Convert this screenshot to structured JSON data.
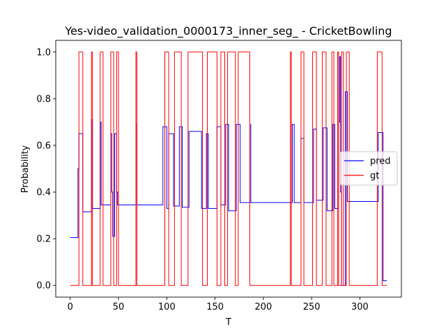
{
  "chart_data": {
    "type": "line",
    "title": "Yes-video_validation_0000173_inner_seg_ - CricketBowling",
    "xlabel": "T",
    "ylabel": "Probability",
    "xlim": [
      -15,
      343
    ],
    "ylim": [
      -0.05,
      1.05
    ],
    "xticks": [
      0,
      50,
      100,
      150,
      200,
      250,
      300
    ],
    "yticks": [
      0.0,
      0.2,
      0.4,
      0.6,
      0.8,
      1.0
    ],
    "xtick_labels": [
      "0",
      "50",
      "100",
      "150",
      "200",
      "250",
      "300"
    ],
    "ytick_labels": [
      "0.0",
      "0.2",
      "0.4",
      "0.6",
      "0.8",
      "1.0"
    ],
    "grid": false,
    "legend_position": "center-right",
    "series": [
      {
        "name": "pred",
        "color": "#0000ff",
        "step": true,
        "x": [
          0,
          7,
          8,
          9,
          12,
          13,
          20,
          22,
          23,
          24,
          30,
          31,
          32,
          34,
          41,
          42,
          43,
          44,
          45,
          46,
          47,
          48,
          49,
          50,
          67,
          68,
          69,
          95,
          96,
          97,
          99,
          100,
          101,
          102,
          106,
          107,
          112,
          113,
          115,
          116,
          122,
          123,
          125,
          126,
          135,
          136,
          140,
          141,
          142,
          143,
          151,
          152,
          155,
          156,
          160,
          161,
          163,
          164,
          171,
          172,
          175,
          176,
          185,
          186,
          187,
          188,
          229,
          230,
          232,
          238,
          239,
          241,
          242,
          251,
          252,
          253,
          255,
          256,
          261,
          262,
          265,
          266,
          271,
          272,
          273,
          274,
          277,
          278,
          279,
          280,
          281,
          282,
          284,
          285,
          286,
          287,
          288,
          290,
          318,
          319,
          323,
          324,
          328
        ],
        "y": [
          0.205,
          0.205,
          0.5,
          0.65,
          0.65,
          0.315,
          0.315,
          0.71,
          0.33,
          0.33,
          0.33,
          0.7,
          0.345,
          0.345,
          0.345,
          0.65,
          0.4,
          0.21,
          0.21,
          0.65,
          0.65,
          0.4,
          0.345,
          0.345,
          0.345,
          0.69,
          0.345,
          0.345,
          0.68,
          0.68,
          0.68,
          0.33,
          0.33,
          0.65,
          0.65,
          0.34,
          0.34,
          0.68,
          0.68,
          0.335,
          0.335,
          0.66,
          0.66,
          0.66,
          0.66,
          0.33,
          0.33,
          0.65,
          0.65,
          0.33,
          0.33,
          0.68,
          0.68,
          0.345,
          0.345,
          0.69,
          0.69,
          0.32,
          0.32,
          0.69,
          0.69,
          0.355,
          0.355,
          0.69,
          0.355,
          0.355,
          0.355,
          0.69,
          0.355,
          0.355,
          0.63,
          0.63,
          0.355,
          0.355,
          0.67,
          0.67,
          0.365,
          0.365,
          0.365,
          0.675,
          0.675,
          0.32,
          0.32,
          0.69,
          0.69,
          0.33,
          0.33,
          0.7,
          0.98,
          0.4,
          0.0,
          0.0,
          0.0,
          0.83,
          0.83,
          0.36,
          0.36,
          0.36,
          0.36,
          0.655,
          0.655,
          0.02,
          0.02
        ]
      },
      {
        "name": "gt",
        "color": "#ff0000",
        "step": true,
        "x": [
          0,
          9,
          13,
          22,
          23,
          31,
          34,
          42,
          45,
          48,
          50,
          68,
          69,
          98,
          102,
          108,
          115,
          122,
          126,
          137,
          142,
          152,
          156,
          160,
          163,
          171,
          174,
          186,
          187,
          228,
          229,
          239,
          242,
          251,
          255,
          261,
          265,
          271,
          273,
          277,
          278,
          281,
          283,
          286,
          289,
          318,
          323,
          328
        ],
        "y": [
          0,
          1,
          0,
          1,
          0,
          1,
          0,
          1,
          0,
          1,
          0,
          1,
          0,
          1,
          0,
          1,
          0,
          1,
          1,
          0,
          1,
          0,
          1,
          0,
          1,
          0,
          1,
          0,
          0,
          1,
          0,
          1,
          0,
          1,
          0,
          1,
          0,
          1,
          0,
          1,
          0,
          1,
          0,
          1,
          0,
          1,
          0,
          0
        ]
      }
    ]
  }
}
